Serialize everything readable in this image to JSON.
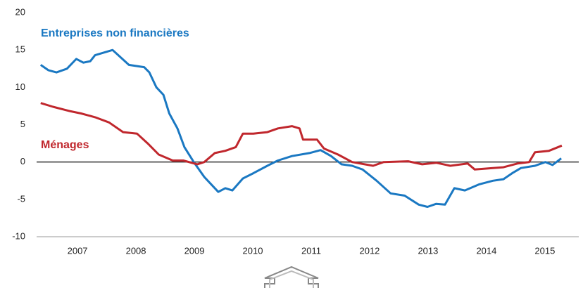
{
  "chart_data": {
    "type": "line",
    "xlim": [
      2006.8,
      2016.08
    ],
    "xticks": [
      {
        "value": 2007.5,
        "label": "2007"
      },
      {
        "value": 2008.5,
        "label": "2008"
      },
      {
        "value": 2009.5,
        "label": "2009"
      },
      {
        "value": 2010.5,
        "label": "2010"
      },
      {
        "value": 2011.5,
        "label": "2011"
      },
      {
        "value": 2012.5,
        "label": "2012"
      },
      {
        "value": 2013.5,
        "label": "2013"
      },
      {
        "value": 2014.5,
        "label": "2014"
      },
      {
        "value": 2015.5,
        "label": "2015"
      }
    ],
    "ylim": [
      -10,
      20
    ],
    "yticks": [
      -10,
      -5,
      0,
      5,
      10,
      15,
      20
    ],
    "series": [
      {
        "name": "Entreprises non financières",
        "color": "#1a78c2",
        "x": [
          2006.87,
          2007.0,
          2007.14,
          2007.32,
          2007.48,
          2007.6,
          2007.72,
          2007.8,
          2008.1,
          2008.38,
          2008.64,
          2008.73,
          2008.85,
          2008.97,
          2009.07,
          2009.21,
          2009.33,
          2009.49,
          2009.67,
          2009.91,
          2010.03,
          2010.15,
          2010.33,
          2010.51,
          2010.75,
          2010.93,
          2011.17,
          2011.47,
          2011.66,
          2011.84,
          2012.02,
          2012.2,
          2012.38,
          2012.62,
          2012.86,
          2013.1,
          2013.34,
          2013.49,
          2013.64,
          2013.79,
          2013.95,
          2014.13,
          2014.37,
          2014.61,
          2014.79,
          2014.94,
          2015.09,
          2015.33,
          2015.51,
          2015.63,
          2015.78
        ],
        "values": [
          13.0,
          12.3,
          12.0,
          12.5,
          13.8,
          13.3,
          13.5,
          14.3,
          15.0,
          13.0,
          12.7,
          12.0,
          10.0,
          9.0,
          6.5,
          4.5,
          2.0,
          0.0,
          -2.0,
          -4.0,
          -3.5,
          -3.8,
          -2.2,
          -1.5,
          -0.5,
          0.2,
          0.8,
          1.2,
          1.6,
          0.8,
          -0.3,
          -0.5,
          -1.0,
          -2.5,
          -4.2,
          -4.5,
          -5.7,
          -6.0,
          -5.6,
          -5.7,
          -3.5,
          -3.8,
          -3.0,
          -2.5,
          -2.3,
          -1.5,
          -0.8,
          -0.5,
          0.0,
          -0.4,
          0.5
        ]
      },
      {
        "name": "Ménages",
        "color": "#c0272d",
        "x": [
          2006.87,
          2007.08,
          2007.38,
          2007.56,
          2007.8,
          2008.04,
          2008.28,
          2008.52,
          2008.7,
          2008.89,
          2009.13,
          2009.31,
          2009.55,
          2009.67,
          2009.85,
          2010.03,
          2010.21,
          2010.33,
          2010.51,
          2010.75,
          2010.93,
          2011.17,
          2011.3,
          2011.36,
          2011.6,
          2011.72,
          2011.96,
          2012.2,
          2012.56,
          2012.74,
          2013.16,
          2013.4,
          2013.64,
          2013.88,
          2014.18,
          2014.3,
          2014.61,
          2014.79,
          2015.03,
          2015.23,
          2015.33,
          2015.57,
          2015.79
        ],
        "values": [
          7.9,
          7.4,
          6.8,
          6.5,
          6.0,
          5.3,
          4.0,
          3.8,
          2.5,
          1.0,
          0.2,
          0.2,
          -0.3,
          0.0,
          1.2,
          1.5,
          2.0,
          3.8,
          3.8,
          4.0,
          4.5,
          4.8,
          4.5,
          3.0,
          3.0,
          1.8,
          1.0,
          0.0,
          -0.5,
          0.0,
          0.1,
          -0.3,
          -0.1,
          -0.5,
          -0.2,
          -1.0,
          -0.8,
          -0.7,
          -0.2,
          0.0,
          1.3,
          1.5,
          2.2
        ]
      }
    ]
  }
}
